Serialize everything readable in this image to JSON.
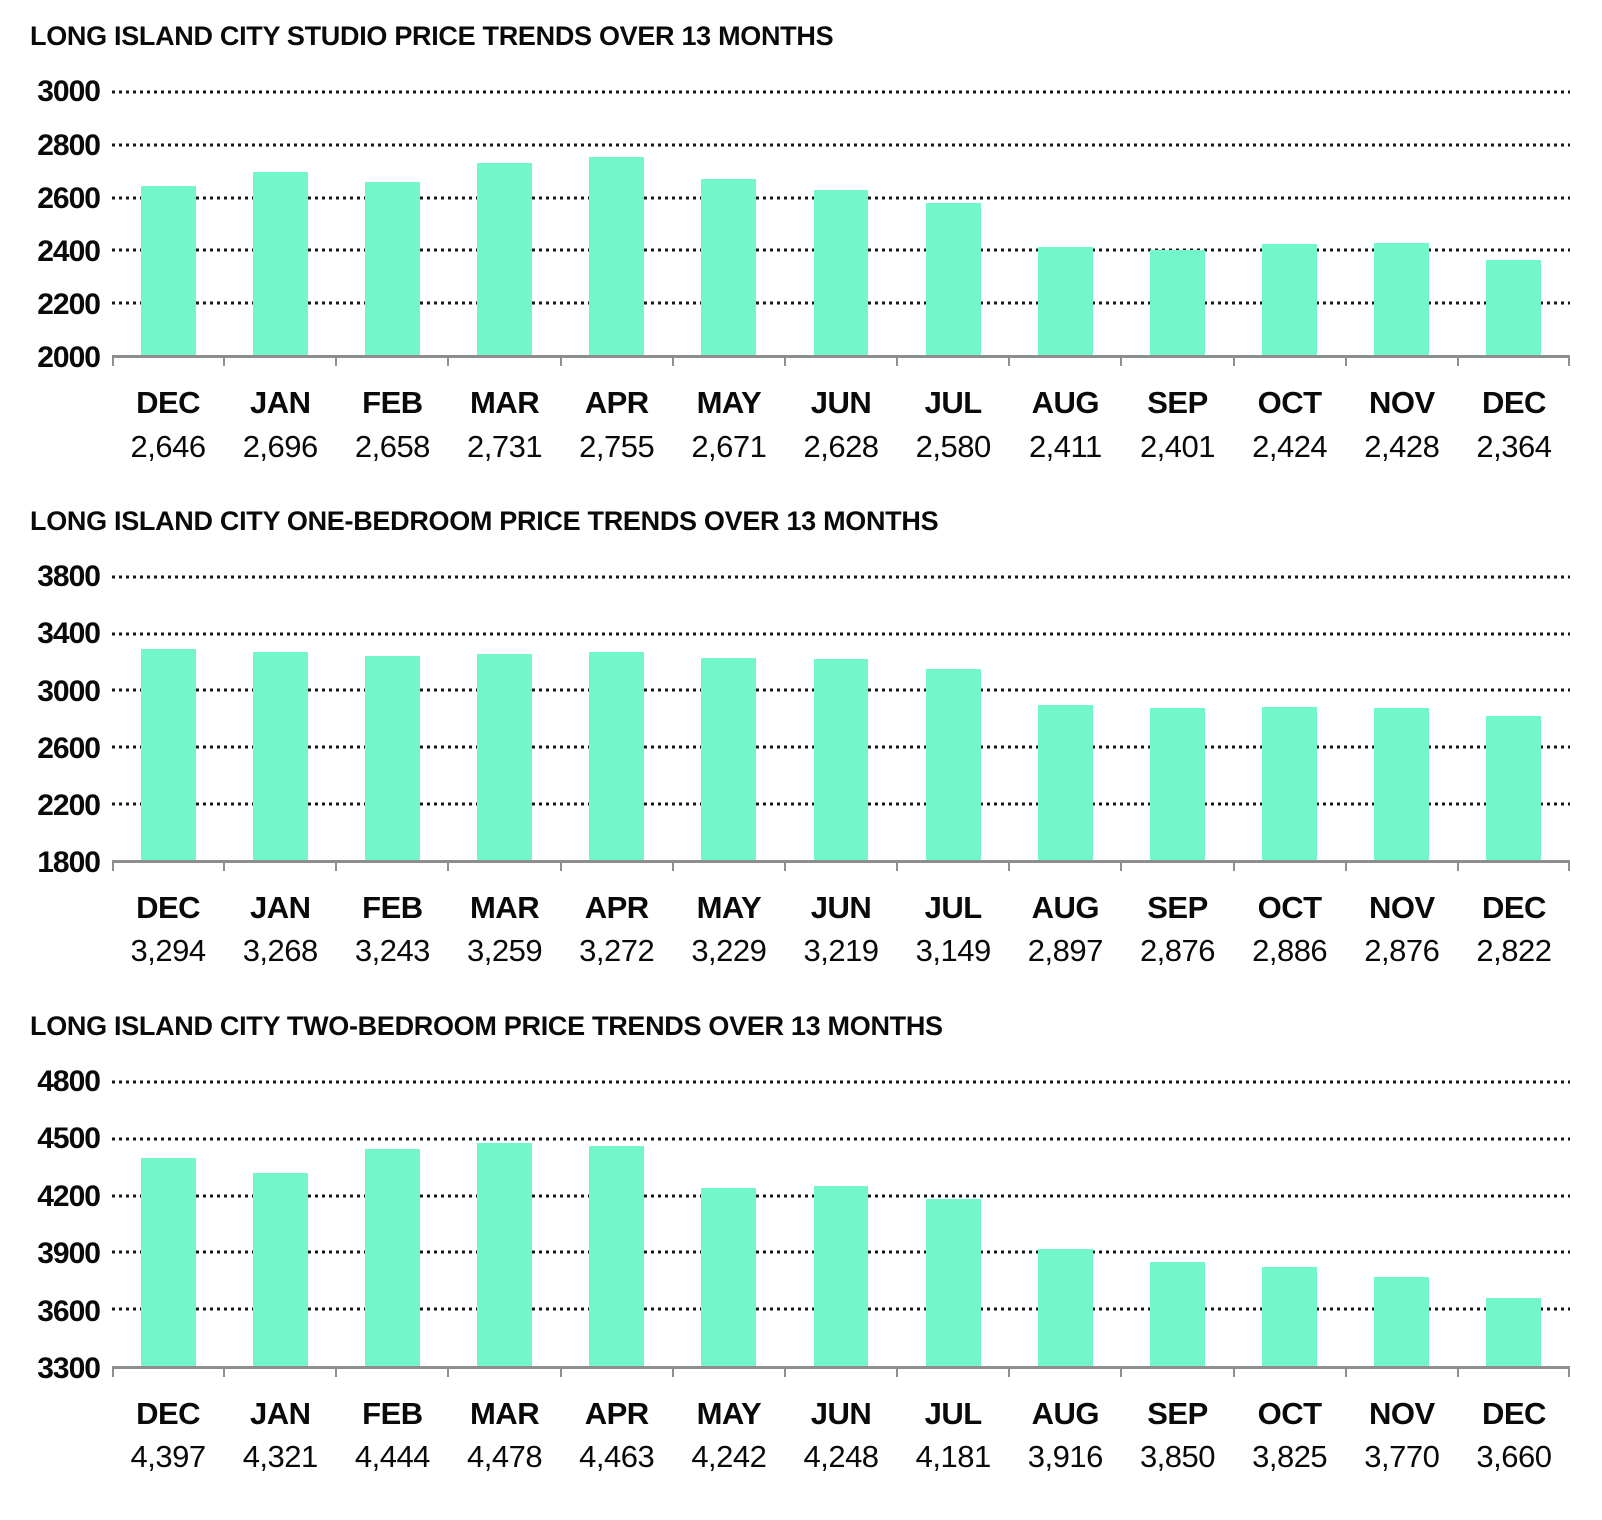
{
  "colors": {
    "bar": "#73F6C9",
    "gridline": "#161616",
    "axis": "#8E8E8E",
    "text": "#0A0A0A"
  },
  "chart_data": [
    {
      "type": "bar",
      "title": "LONG ISLAND CITY STUDIO PRICE TRENDS OVER 13 MONTHS",
      "categories": [
        "DEC",
        "JAN",
        "FEB",
        "MAR",
        "APR",
        "MAY",
        "JUN",
        "JUL",
        "AUG",
        "SEP",
        "OCT",
        "NOV",
        "DEC"
      ],
      "values": [
        2646,
        2696,
        2658,
        2731,
        2755,
        2671,
        2628,
        2580,
        2411,
        2401,
        2424,
        2428,
        2364
      ],
      "value_labels": [
        "2,646",
        "2,696",
        "2,658",
        "2,731",
        "2,755",
        "2,671",
        "2,628",
        "2,580",
        "2,411",
        "2,401",
        "2,424",
        "2,428",
        "2,364"
      ],
      "y_ticks": [
        2000,
        2200,
        2400,
        2600,
        2800,
        3000
      ],
      "ylim": [
        2000,
        3000
      ],
      "xlabel": "",
      "ylabel": "",
      "grid": "horizontal-dotted",
      "legend": "none",
      "bar_color": "#73F6C9"
    },
    {
      "type": "bar",
      "title": "LONG ISLAND CITY ONE-BEDROOM PRICE TRENDS OVER 13 MONTHS",
      "categories": [
        "DEC",
        "JAN",
        "FEB",
        "MAR",
        "APR",
        "MAY",
        "JUN",
        "JUL",
        "AUG",
        "SEP",
        "OCT",
        "NOV",
        "DEC"
      ],
      "values": [
        3294,
        3268,
        3243,
        3259,
        3272,
        3229,
        3219,
        3149,
        2897,
        2876,
        2886,
        2876,
        2822
      ],
      "value_labels": [
        "3,294",
        "3,268",
        "3,243",
        "3,259",
        "3,272",
        "3,229",
        "3,219",
        "3,149",
        "2,897",
        "2,876",
        "2,886",
        "2,876",
        "2,822"
      ],
      "y_ticks": [
        1800,
        2200,
        2600,
        3000,
        3400,
        3800
      ],
      "ylim": [
        1800,
        3800
      ],
      "xlabel": "",
      "ylabel": "",
      "grid": "horizontal-dotted",
      "legend": "none",
      "bar_color": "#73F6C9"
    },
    {
      "type": "bar",
      "title": "LONG ISLAND CITY TWO-BEDROOM PRICE TRENDS OVER 13 MONTHS",
      "categories": [
        "DEC",
        "JAN",
        "FEB",
        "MAR",
        "APR",
        "MAY",
        "JUN",
        "JUL",
        "AUG",
        "SEP",
        "OCT",
        "NOV",
        "DEC"
      ],
      "values": [
        4397,
        4321,
        4444,
        4478,
        4463,
        4242,
        4248,
        4181,
        3916,
        3850,
        3825,
        3770,
        3660
      ],
      "value_labels": [
        "4,397",
        "4,321",
        "4,444",
        "4,478",
        "4,463",
        "4,242",
        "4,248",
        "4,181",
        "3,916",
        "3,850",
        "3,825",
        "3,770",
        "3,660"
      ],
      "y_ticks": [
        3300,
        3600,
        3900,
        4200,
        4500,
        4800
      ],
      "ylim": [
        3300,
        4800
      ],
      "xlabel": "",
      "ylabel": "",
      "grid": "horizontal-dotted",
      "legend": "none",
      "bar_color": "#73F6C9"
    }
  ]
}
